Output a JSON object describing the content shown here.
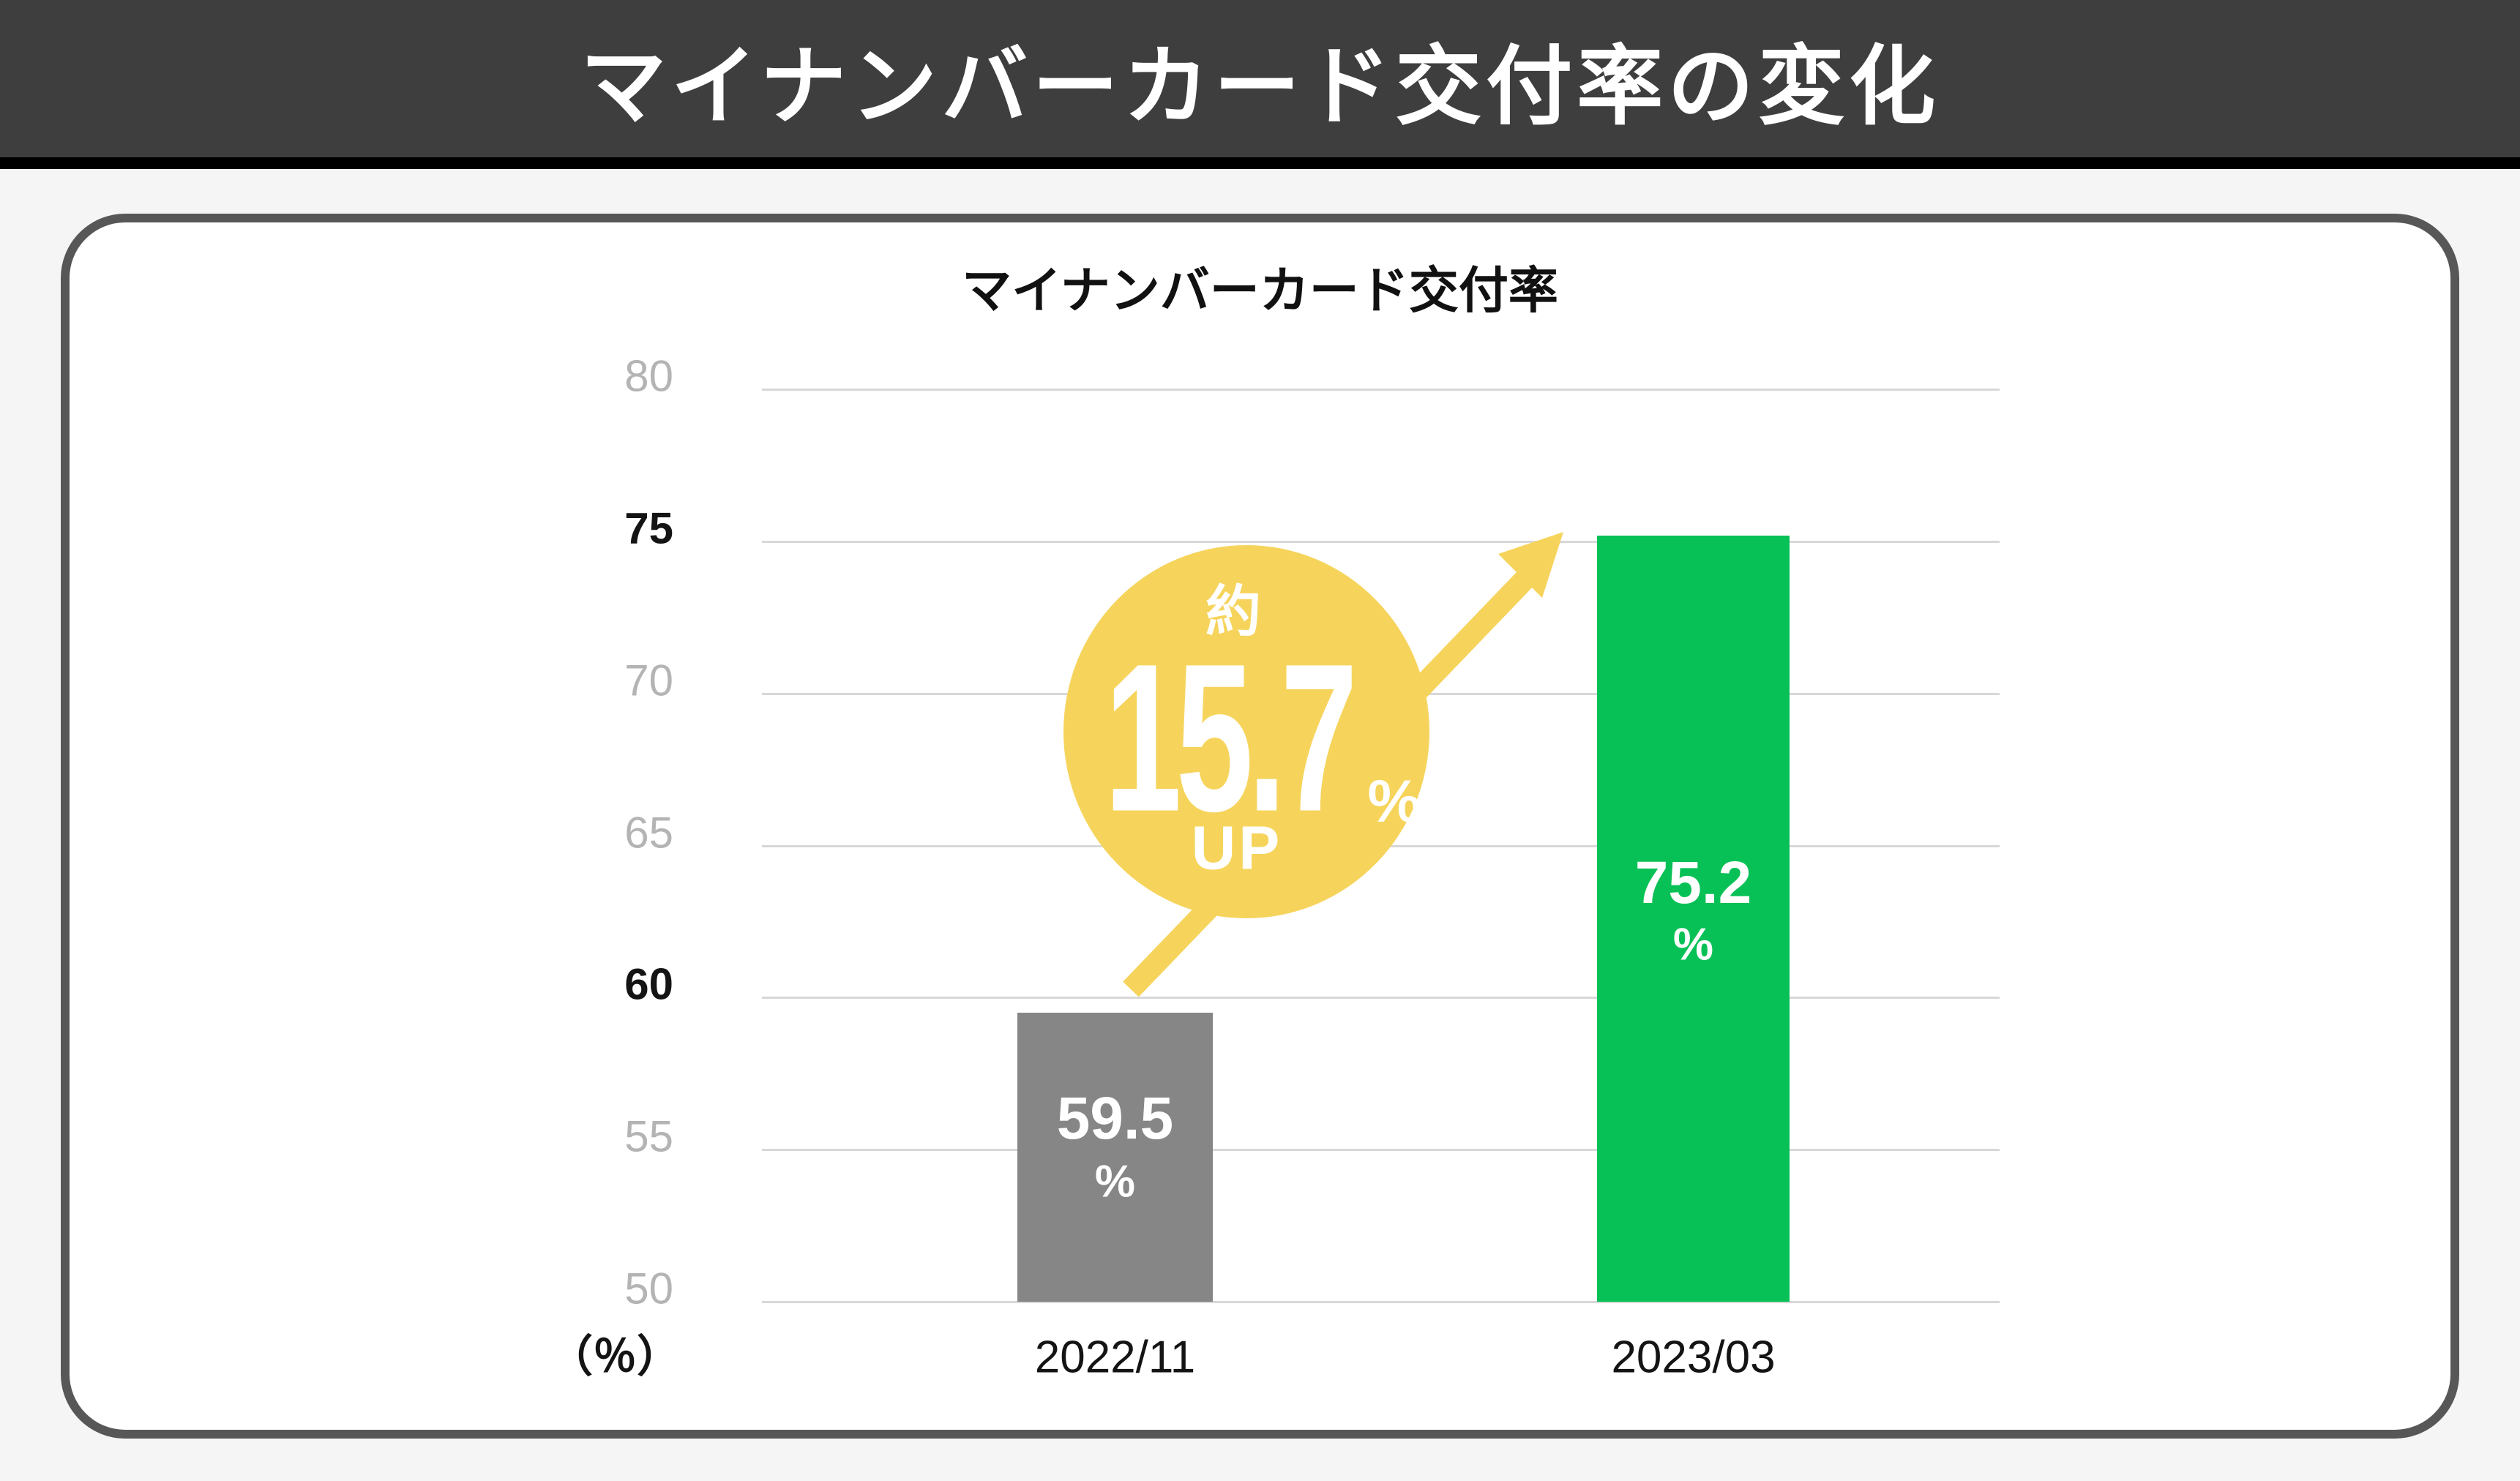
{
  "header": {
    "title": "マイナンバーカード交付率の変化"
  },
  "card": {
    "chart_title": "マイナンバーカード交付率"
  },
  "chart_data": {
    "type": "bar",
    "title": "マイナンバーカード交付率",
    "categories": [
      "2022/11",
      "2023/03"
    ],
    "values": [
      59.5,
      75.2
    ],
    "value_labels": [
      "59.5",
      "75.2"
    ],
    "unit": "%",
    "axis_unit_label": "（％）",
    "ylim": [
      50,
      80
    ],
    "yticks": [
      80,
      75,
      70,
      65,
      60,
      55,
      50
    ],
    "emphasized_yticks": [
      75,
      60
    ],
    "grid": true,
    "legend_position": "none",
    "bar_colors": [
      "#868686",
      "#08C156"
    ],
    "annotation": {
      "approx_label": "約",
      "value": "15.7",
      "unit": "%",
      "direction": "UP",
      "badge_color": "#F6D45C",
      "text_color": "#FFFFFF"
    }
  },
  "colors": {
    "header_bg": "#3E3E3E",
    "header_text": "#FFFFFF",
    "divider": "#000000",
    "page_bg": "#F5F5F5",
    "card_bg": "#FFFFFF",
    "card_border": "#575757",
    "grid_line": "#D8D8D8",
    "tick_muted": "#B4B4B4",
    "tick_emphasis": "#141414",
    "accent_yellow": "#F6D45C"
  }
}
